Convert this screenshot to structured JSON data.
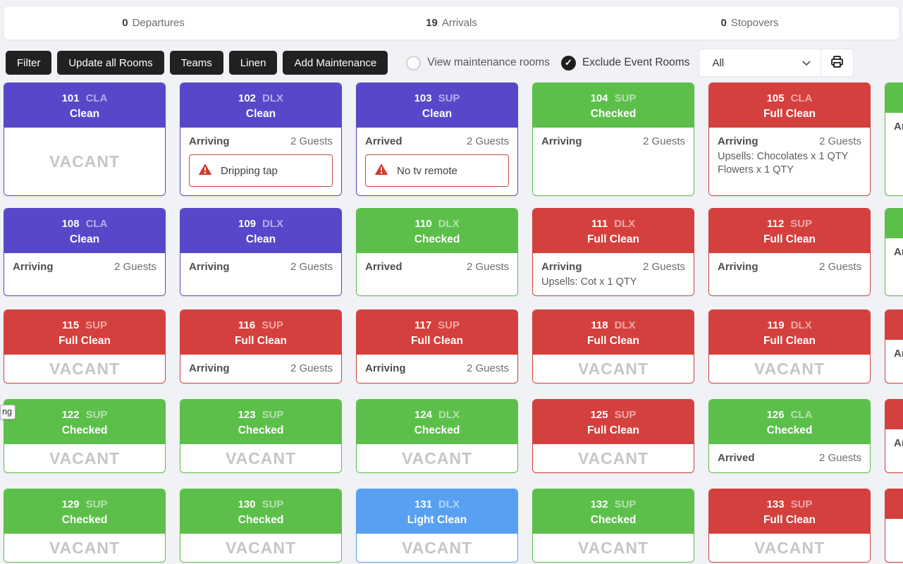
{
  "summary": {
    "departures_count": "0",
    "departures_label": "Departures",
    "arrivals_count": "19",
    "arrivals_label": "Arrivals",
    "stopovers_count": "0",
    "stopovers_label": "Stopovers"
  },
  "toolbar": {
    "buttons": [
      "Filter",
      "Update all Rooms",
      "Teams",
      "Linen",
      "Add Maintenance"
    ],
    "view_maintenance_label": "View maintenance rooms",
    "exclude_event_label": "Exclude Event Rooms",
    "exclude_event_checkmark": "✓",
    "filter_dropdown_value": "All"
  },
  "icons": {
    "print": "printer-icon",
    "chevron": "chevron-down-icon",
    "warning": "warning-triangle-icon",
    "checked_toggle": "check-circle-icon",
    "unchecked_toggle": "radio-unchecked-icon"
  },
  "colors": {
    "clean": "#5747c9",
    "checked": "#5cbf4a",
    "full_clean": "#d4403d",
    "light_clean": "#58a0f2",
    "alert_border": "#c64a3f",
    "alert_icon": "#d43b2f"
  },
  "vacant_label": "VACANT",
  "tooltip_fragment": "ng",
  "rows": [
    {
      "size": "tall",
      "cards": [
        {
          "number": "101",
          "type": "CLA",
          "status": "Clean",
          "status_key": "clean",
          "vacant": true
        },
        {
          "number": "102",
          "type": "DLX",
          "status": "Clean",
          "status_key": "clean",
          "arrival": "Arriving",
          "guests": "2 Guests",
          "alert": "Dripping tap"
        },
        {
          "number": "103",
          "type": "SUP",
          "status": "Clean",
          "status_key": "clean",
          "arrival": "Arrived",
          "guests": "2 Guests",
          "alert": "No tv remote"
        },
        {
          "number": "104",
          "type": "SUP",
          "status": "Checked",
          "status_key": "checked",
          "arrival": "Arriving",
          "guests": "2 Guests"
        },
        {
          "number": "105",
          "type": "CLA",
          "status": "Full Clean",
          "status_key": "full_clean",
          "arrival": "Arriving",
          "guests": "2 Guests",
          "upsells": "Upsells: Chocolates x 1 QTY Flowers x 1 QTY"
        },
        {
          "number": "",
          "type": "",
          "status": "",
          "status_key": "checked",
          "arrival": "Ar",
          "clipped": true
        }
      ]
    },
    {
      "size": "mid",
      "cards": [
        {
          "number": "108",
          "type": "CLA",
          "status": "Clean",
          "status_key": "clean",
          "arrival": "Arriving",
          "guests": "2 Guests"
        },
        {
          "number": "109",
          "type": "DLX",
          "status": "Clean",
          "status_key": "clean",
          "arrival": "Arriving",
          "guests": "2 Guests"
        },
        {
          "number": "110",
          "type": "DLX",
          "status": "Checked",
          "status_key": "checked",
          "arrival": "Arrived",
          "guests": "2 Guests"
        },
        {
          "number": "111",
          "type": "DLX",
          "status": "Full Clean",
          "status_key": "full_clean",
          "arrival": "Arriving",
          "guests": "2 Guests",
          "upsells": "Upsells: Cot x 1 QTY"
        },
        {
          "number": "112",
          "type": "SUP",
          "status": "Full Clean",
          "status_key": "full_clean",
          "arrival": "Arriving",
          "guests": "2 Guests"
        },
        {
          "number": "",
          "type": "",
          "status": "",
          "status_key": "checked",
          "arrival": "Ar",
          "clipped": true
        }
      ]
    },
    {
      "size": "short",
      "cards": [
        {
          "number": "115",
          "type": "SUP",
          "status": "Full Clean",
          "status_key": "full_clean",
          "vacant": true
        },
        {
          "number": "116",
          "type": "SUP",
          "status": "Full Clean",
          "status_key": "full_clean",
          "arrival": "Arriving",
          "guests": "2 Guests"
        },
        {
          "number": "117",
          "type": "SUP",
          "status": "Full Clean",
          "status_key": "full_clean",
          "arrival": "Arriving",
          "guests": "2 Guests"
        },
        {
          "number": "118",
          "type": "DLX",
          "status": "Full Clean",
          "status_key": "full_clean",
          "vacant": true
        },
        {
          "number": "119",
          "type": "DLX",
          "status": "Full Clean",
          "status_key": "full_clean",
          "vacant": true
        },
        {
          "number": "",
          "type": "",
          "status": "",
          "status_key": "full_clean",
          "arrival": "Ar",
          "clipped": true
        }
      ]
    },
    {
      "size": "short",
      "cards": [
        {
          "number": "122",
          "type": "SUP",
          "status": "Checked",
          "status_key": "checked",
          "vacant": true
        },
        {
          "number": "123",
          "type": "SUP",
          "status": "Checked",
          "status_key": "checked",
          "vacant": true
        },
        {
          "number": "124",
          "type": "DLX",
          "status": "Checked",
          "status_key": "checked",
          "vacant": true
        },
        {
          "number": "125",
          "type": "SUP",
          "status": "Full Clean",
          "status_key": "full_clean",
          "vacant": true
        },
        {
          "number": "126",
          "type": "CLA",
          "status": "Checked",
          "status_key": "checked",
          "arrival": "Arrived",
          "guests": "2 Guests"
        },
        {
          "number": "",
          "type": "",
          "status": "",
          "status_key": "full_clean",
          "arrival": "Ar",
          "clipped": true
        }
      ]
    },
    {
      "size": "short",
      "cards": [
        {
          "number": "129",
          "type": "SUP",
          "status": "Checked",
          "status_key": "checked",
          "vacant": true
        },
        {
          "number": "130",
          "type": "SUP",
          "status": "Checked",
          "status_key": "checked",
          "vacant": true
        },
        {
          "number": "131",
          "type": "DLX",
          "status": "Light Clean",
          "status_key": "light_clean",
          "vacant": true
        },
        {
          "number": "132",
          "type": "SUP",
          "status": "Checked",
          "status_key": "checked",
          "vacant": true
        },
        {
          "number": "133",
          "type": "SUP",
          "status": "Full Clean",
          "status_key": "full_clean",
          "vacant": true
        },
        {
          "number": "",
          "type": "",
          "status": "",
          "status_key": "full_clean",
          "clipped": true
        }
      ]
    }
  ]
}
